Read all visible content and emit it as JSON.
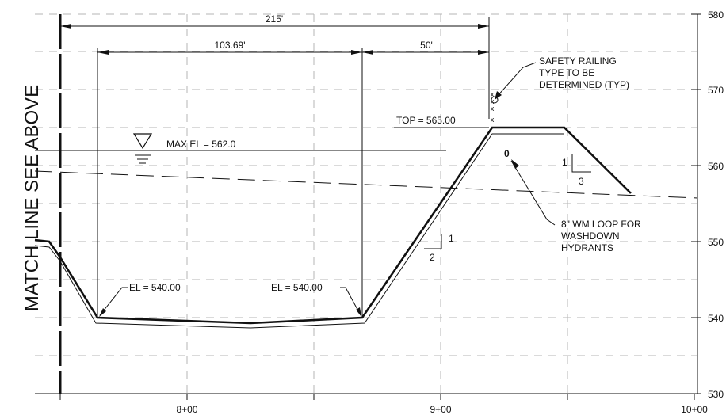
{
  "match_line": "MATCH LINE SEE ABOVE",
  "elevations": [
    "580",
    "570",
    "560",
    "550",
    "540",
    "530"
  ],
  "stations": [
    "8+00",
    "9+00",
    "10+00"
  ],
  "dimensions": {
    "overall": "215'",
    "bottom_width": "103.69'",
    "offset": "50'"
  },
  "labels": {
    "max_el": "MAX EL = 562.0",
    "top": "TOP = 565.00",
    "el_left": "EL = 540.00",
    "el_right": "EL = 540.00",
    "railing_line1": "SAFETY RAILING",
    "railing_line2": "TYPE TO BE",
    "railing_line3": "DETERMINED (TYP)",
    "wm_line1": "8\" WM LOOP FOR",
    "wm_line2": "WASHDOWN",
    "wm_line3": "HYDRANTS",
    "wm_symbol": "0"
  },
  "slopes": {
    "inner_rise": "1",
    "inner_run": "2",
    "outer_rise": "1",
    "outer_run": "3"
  },
  "railing_marks": [
    "x",
    "x",
    "x",
    "x"
  ]
}
